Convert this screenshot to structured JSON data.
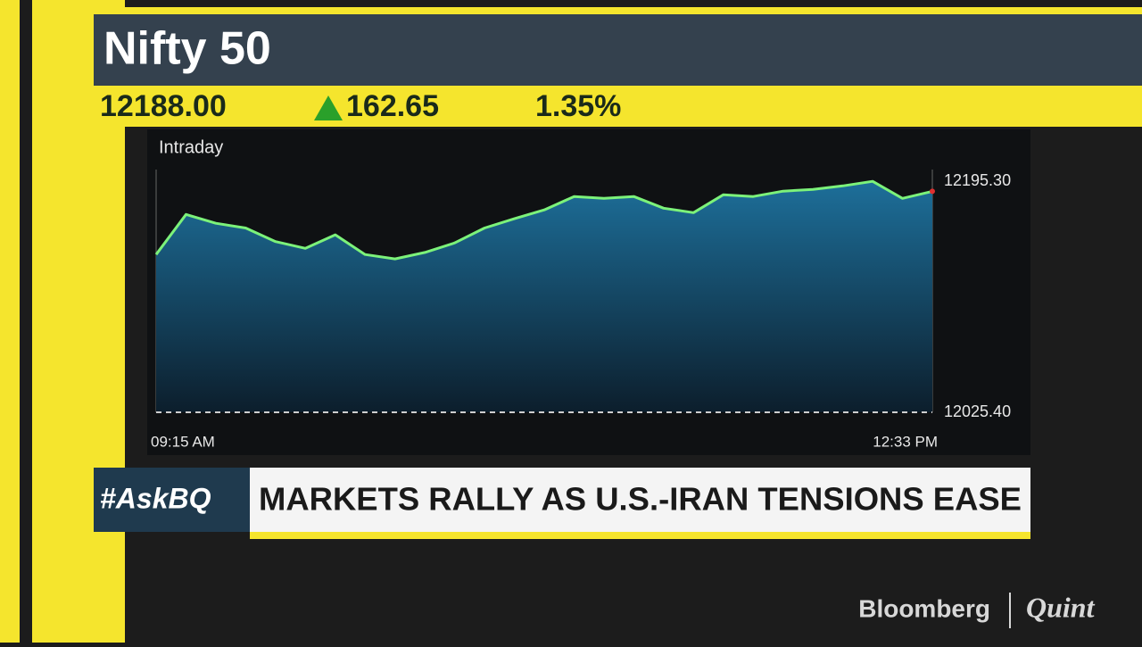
{
  "chart_data": {
    "type": "area",
    "title": "Nifty 50",
    "subtitle": "Intraday",
    "categories": [
      "09:15 AM",
      null,
      null,
      null,
      null,
      null,
      null,
      null,
      null,
      null,
      null,
      null,
      null,
      null,
      null,
      null,
      null,
      null,
      null,
      null,
      null,
      null,
      null,
      null,
      null,
      null,
      "12:33 PM"
    ],
    "values": [
      12141.5,
      12171,
      12164.5,
      12161,
      12151,
      12146,
      12156,
      12141.5,
      12138.3,
      12143,
      12150,
      12161,
      12167.8,
      12174.3,
      12184.2,
      12182.8,
      12184.2,
      12175.6,
      12172.3,
      12185.5,
      12184.2,
      12188.1,
      12189.4,
      12192,
      12195.3,
      12182.8,
      12188
    ],
    "color": "#7cf27a",
    "ylim": [
      12025.4,
      12204
    ],
    "yticks": [
      {
        "value": 12025.4,
        "label": "12025.40"
      },
      {
        "value": 12195.3,
        "label": "12195.30"
      }
    ]
  },
  "quote": {
    "price": "12188.00",
    "change": "162.65",
    "change_pct": "1.35%"
  },
  "ticker": {
    "tag": "#AskBQ",
    "headline": "MARKETS RALLY AS U.S.-IRAN TENSIONS EASE"
  },
  "logo": {
    "left": "Bloomberg",
    "right": "Quint"
  }
}
